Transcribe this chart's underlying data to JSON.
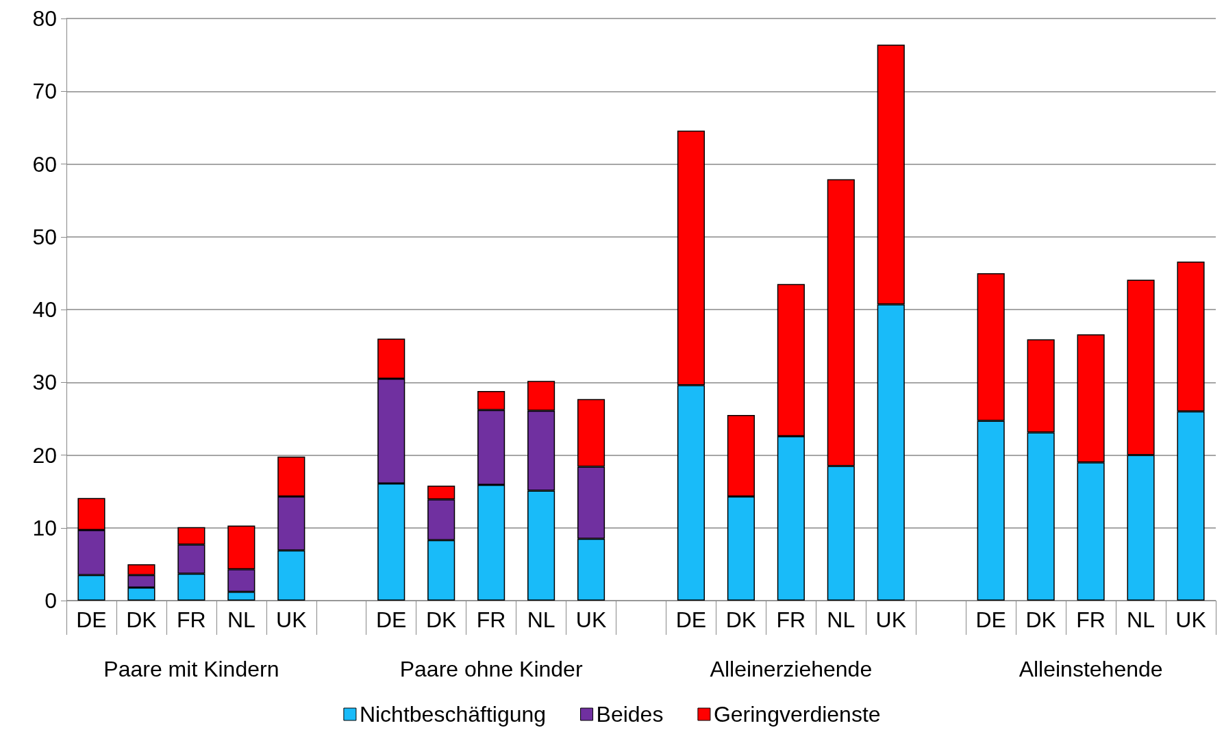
{
  "chart_data": {
    "type": "bar",
    "stacked": true,
    "categories": [
      "DE",
      "DK",
      "FR",
      "NL",
      "UK",
      null,
      "DE",
      "DK",
      "FR",
      "NL",
      "UK",
      null,
      "DE",
      "DK",
      "FR",
      "NL",
      "UK",
      null,
      "DE",
      "DK",
      "FR",
      "NL",
      "UK"
    ],
    "series": [
      {
        "name": "Nichtbeschäftigung",
        "color": "#19bbf9",
        "values": [
          3.5,
          1.8,
          3.7,
          1.2,
          6.9,
          null,
          16.1,
          8.3,
          15.9,
          15.1,
          8.5,
          null,
          29.6,
          14.3,
          22.6,
          18.5,
          40.7,
          null,
          24.7,
          23.1,
          19.0,
          20.0,
          26.0
        ]
      },
      {
        "name": "Beides",
        "color": "#7030a0",
        "values": [
          6.2,
          1.7,
          4.0,
          3.1,
          7.4,
          null,
          14.4,
          5.6,
          10.3,
          11.0,
          9.9,
          null,
          null,
          null,
          null,
          null,
          null,
          null,
          null,
          null,
          null,
          null,
          null
        ]
      },
      {
        "name": "Geringverdienste",
        "color": "#ff0000",
        "values": [
          4.4,
          1.5,
          2.4,
          6.0,
          5.5,
          null,
          5.5,
          1.9,
          2.6,
          4.1,
          9.3,
          null,
          35.0,
          11.2,
          20.9,
          39.4,
          35.7,
          null,
          20.3,
          12.8,
          17.6,
          24.1,
          20.6
        ]
      }
    ],
    "annotations": [
      "Paare mit Kindern",
      "Paare ohne Kinder",
      "Alleinerziehende",
      "Alleinstehende"
    ],
    "ylim": [
      0,
      80
    ],
    "yticks": [
      0,
      10,
      20,
      30,
      40,
      50,
      60,
      70,
      80
    ],
    "grid": "y",
    "legend": "bottom"
  }
}
